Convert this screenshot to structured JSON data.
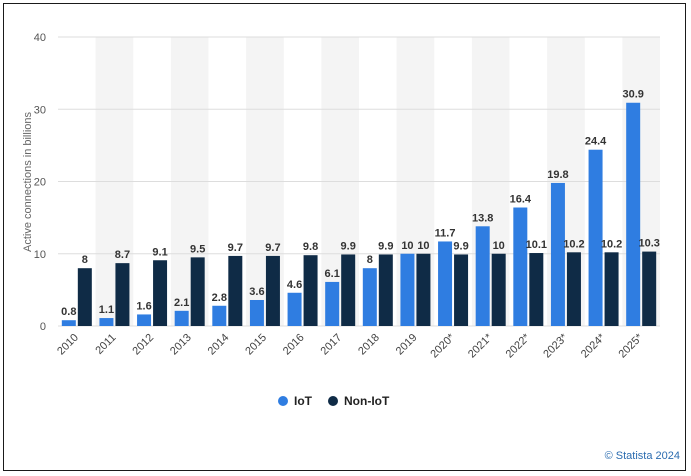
{
  "chart_data": {
    "type": "bar",
    "categories": [
      "2010",
      "2011",
      "2012",
      "2013",
      "2014",
      "2015",
      "2016",
      "2017",
      "2018",
      "2019",
      "2020*",
      "2021*",
      "2022*",
      "2023*",
      "2024*",
      "2025*"
    ],
    "series": [
      {
        "name": "IoT",
        "color": "#2f7de1",
        "values": [
          0.8,
          1.1,
          1.6,
          2.1,
          2.8,
          3.6,
          4.6,
          6.1,
          8,
          10,
          11.7,
          13.8,
          16.4,
          19.8,
          24.4,
          30.9
        ]
      },
      {
        "name": "Non-IoT",
        "color": "#0f2b46",
        "values": [
          8,
          8.7,
          9.1,
          9.5,
          9.7,
          9.7,
          9.8,
          9.9,
          9.9,
          10,
          9.9,
          10,
          10.1,
          10.2,
          10.2,
          10.3
        ]
      }
    ],
    "ylabel": "Active connections in billions",
    "ylim": [
      0,
      40
    ],
    "yticks": [
      0,
      10,
      20,
      30,
      40
    ],
    "grid": true,
    "legend_position": "bottom-center"
  },
  "credit": "© Statista 2024"
}
